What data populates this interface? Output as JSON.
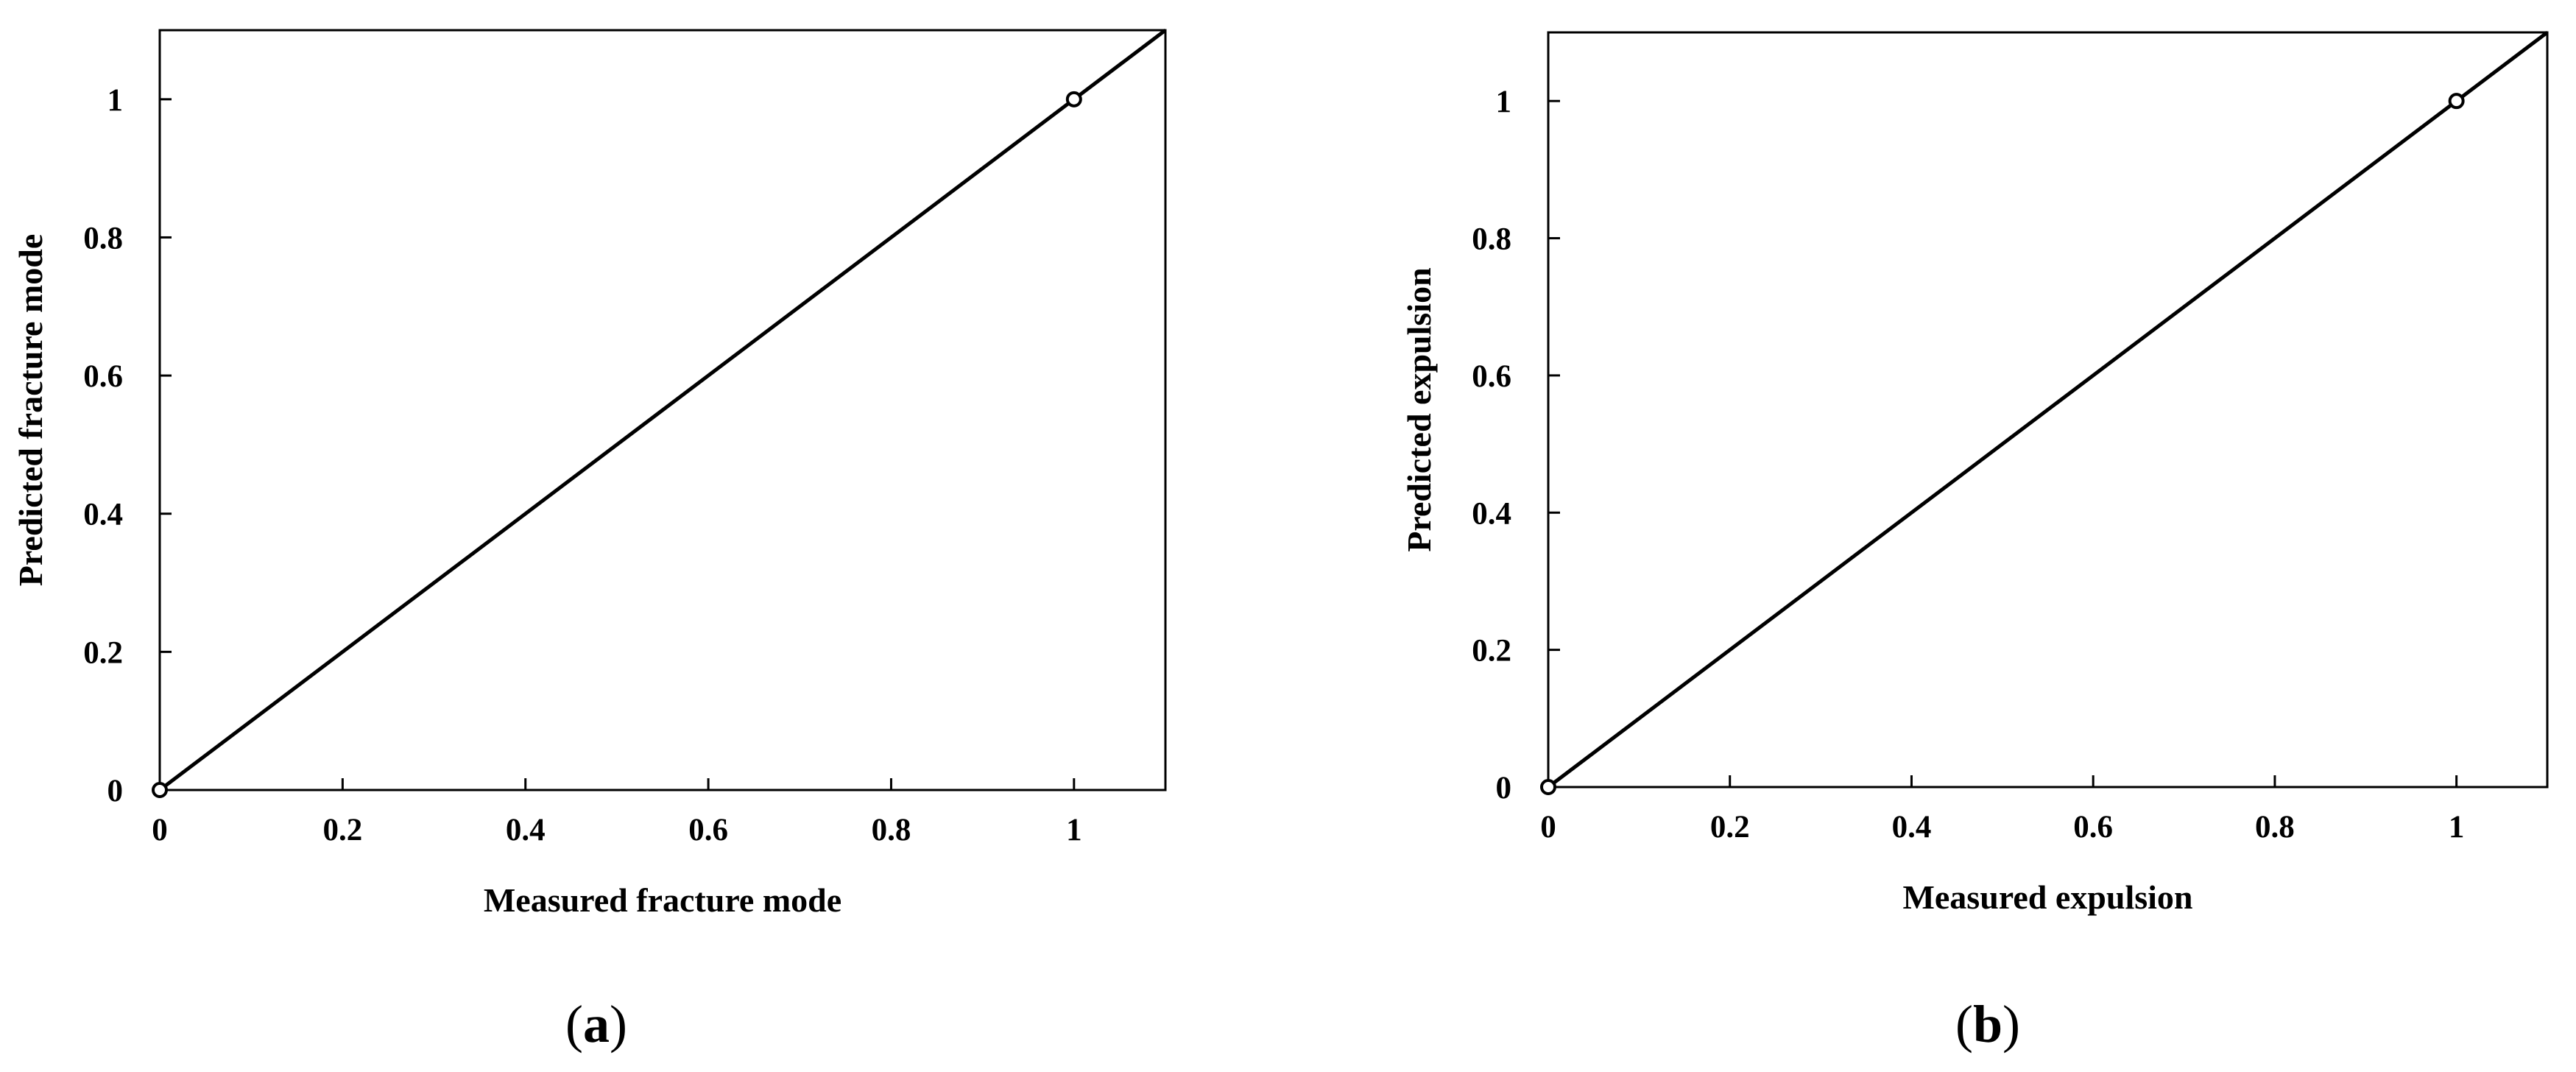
{
  "chart_data": [
    {
      "type": "scatter",
      "panel_label": "a",
      "xlabel": "Measured fracture mode",
      "ylabel": "Predicted fracture mode",
      "xlim": [
        0,
        1.1
      ],
      "ylim": [
        0,
        1.1
      ],
      "xticks": [
        "0",
        "0.2",
        "0.4",
        "0.6",
        "0.8",
        "1"
      ],
      "yticks": [
        "0",
        "0.2",
        "0.4",
        "0.6",
        "0.8",
        "1"
      ],
      "points": [
        {
          "x": 0,
          "y": 0
        },
        {
          "x": 1,
          "y": 1
        }
      ],
      "reference_line": {
        "from": [
          0,
          0
        ],
        "to": [
          1.1,
          1.1
        ]
      },
      "grid": false
    },
    {
      "type": "scatter",
      "panel_label": "b",
      "xlabel": "Measured expulsion",
      "ylabel": "Predicted expulsion",
      "xlim": [
        0,
        1.1
      ],
      "ylim": [
        0,
        1.1
      ],
      "xticks": [
        "0",
        "0.2",
        "0.4",
        "0.6",
        "0.8",
        "1"
      ],
      "yticks": [
        "0",
        "0.2",
        "0.4",
        "0.6",
        "0.8",
        "1"
      ],
      "points": [
        {
          "x": 0,
          "y": 0
        },
        {
          "x": 1,
          "y": 1
        }
      ],
      "reference_line": {
        "from": [
          0,
          0
        ],
        "to": [
          1.1,
          1.1
        ]
      },
      "grid": false
    }
  ]
}
